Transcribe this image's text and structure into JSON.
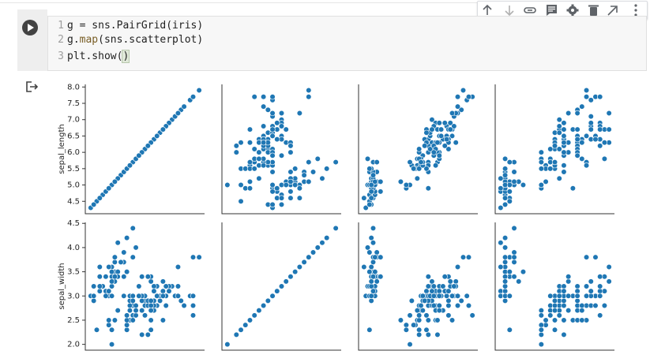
{
  "code": {
    "lines": [
      {
        "number": 1,
        "code": [
          "g = sns.PairGrid(iris)"
        ]
      },
      {
        "number": 2,
        "code": [
          "g.",
          "map",
          "(sns.scatterplot)"
        ]
      },
      {
        "number": 3,
        "code": [
          "plt.show(",
          ")"
        ]
      }
    ]
  },
  "chart_data": {
    "type": "pairgrid",
    "color": "#1f77b4",
    "columns": [
      {
        "label": "sepal_length",
        "lim": [
          4.12,
          8.08
        ],
        "ticks": [
          4.5,
          {
            "value": 5,
            "label": "5.0"
          },
          5.5,
          {
            "value": 6,
            "label": "6.0"
          },
          6.5,
          {
            "value": 7,
            "label": "7.0"
          },
          7.5,
          {
            "value": 8,
            "label": "8.0"
          }
        ],
        "values": [
          5.1,
          4.9,
          4.7,
          4.6,
          5.0,
          5.4,
          4.6,
          5.0,
          4.4,
          4.9,
          5.4,
          4.8,
          4.8,
          4.3,
          5.8,
          5.7,
          5.4,
          5.1,
          5.7,
          5.1,
          5.4,
          5.1,
          4.6,
          5.1,
          4.8,
          5.0,
          5.0,
          5.2,
          5.2,
          4.7,
          4.8,
          5.4,
          5.2,
          5.5,
          4.9,
          5.0,
          5.5,
          4.9,
          4.4,
          5.1,
          5.0,
          4.5,
          4.4,
          5.0,
          5.1,
          4.8,
          5.1,
          4.6,
          5.3,
          5.0,
          7.0,
          6.4,
          6.9,
          5.5,
          6.5,
          5.7,
          6.3,
          4.9,
          6.6,
          5.2,
          5.0,
          5.9,
          6.0,
          6.1,
          5.6,
          6.7,
          5.6,
          5.8,
          6.2,
          5.6,
          5.9,
          6.1,
          6.3,
          6.1,
          6.4,
          6.6,
          6.8,
          6.7,
          6.0,
          5.7,
          5.5,
          5.5,
          5.8,
          6.0,
          5.4,
          6.0,
          6.7,
          6.3,
          5.6,
          5.5,
          5.5,
          6.1,
          5.8,
          5.0,
          5.6,
          5.7,
          5.7,
          6.2,
          5.1,
          5.7,
          6.3,
          5.8,
          7.1,
          6.3,
          6.5,
          7.6,
          4.9,
          7.3,
          6.7,
          7.2,
          6.5,
          6.4,
          6.8,
          5.7,
          5.8,
          6.4,
          6.5,
          7.7,
          7.7,
          6.0,
          6.9,
          5.6,
          7.7,
          6.3,
          6.7,
          7.2,
          6.2,
          6.1,
          6.4,
          7.2,
          7.4,
          7.9,
          6.4,
          6.3,
          6.1,
          7.7,
          6.3,
          6.4,
          6.0,
          6.9,
          6.7,
          6.9,
          5.8,
          6.8,
          6.7,
          6.7,
          6.3,
          6.5,
          6.2,
          5.9
        ]
      },
      {
        "label": "sepal_width",
        "lim": [
          1.88,
          4.52
        ],
        "ticks": [
          {
            "value": 2,
            "label": "2.0"
          },
          2.5,
          {
            "value": 3,
            "label": "3.0"
          },
          3.5,
          {
            "value": 4,
            "label": "4.0"
          },
          4.5
        ],
        "values": [
          3.5,
          3.0,
          3.2,
          3.1,
          3.6,
          3.9,
          3.4,
          3.4,
          2.9,
          3.1,
          3.7,
          3.4,
          3.0,
          3.0,
          4.0,
          4.4,
          3.9,
          3.5,
          3.8,
          3.8,
          3.4,
          3.7,
          3.6,
          3.3,
          3.4,
          3.0,
          3.4,
          3.5,
          3.4,
          3.2,
          3.1,
          3.4,
          4.1,
          4.2,
          3.1,
          3.2,
          3.5,
          3.6,
          3.0,
          3.4,
          3.5,
          2.3,
          3.2,
          3.5,
          3.8,
          3.0,
          3.8,
          3.2,
          3.7,
          3.3,
          3.2,
          3.2,
          3.1,
          2.3,
          2.8,
          2.8,
          3.3,
          2.4,
          2.9,
          2.7,
          2.0,
          3.0,
          2.2,
          2.9,
          2.9,
          3.1,
          3.0,
          2.7,
          2.2,
          2.5,
          3.2,
          2.8,
          2.5,
          2.8,
          2.9,
          3.0,
          2.8,
          3.0,
          2.9,
          2.6,
          2.4,
          2.4,
          2.7,
          2.7,
          3.0,
          3.4,
          3.1,
          2.3,
          3.0,
          2.5,
          2.6,
          3.0,
          2.6,
          2.3,
          2.7,
          3.0,
          2.9,
          2.9,
          2.5,
          2.8,
          3.3,
          2.7,
          3.0,
          2.9,
          3.0,
          3.0,
          2.5,
          2.9,
          2.5,
          3.6,
          3.2,
          2.7,
          3.0,
          2.5,
          2.8,
          3.2,
          3.0,
          3.8,
          2.6,
          2.2,
          3.2,
          2.8,
          2.8,
          2.7,
          3.3,
          3.2,
          2.8,
          3.0,
          2.8,
          3.0,
          2.8,
          3.8,
          2.8,
          2.8,
          2.6,
          3.0,
          3.4,
          3.1,
          3.0,
          3.1,
          3.1,
          3.1,
          2.7,
          3.2,
          3.3,
          3.0,
          2.5,
          3.0,
          3.4,
          3.0
        ]
      },
      {
        "lim": [
          0.705,
          7.195
        ],
        "values": [
          1.4,
          1.4,
          1.3,
          1.5,
          1.4,
          1.7,
          1.4,
          1.5,
          1.4,
          1.5,
          1.5,
          1.6,
          1.4,
          1.1,
          1.2,
          1.5,
          1.3,
          1.4,
          1.7,
          1.5,
          1.7,
          1.5,
          1.0,
          1.7,
          1.9,
          1.6,
          1.6,
          1.5,
          1.4,
          1.6,
          1.6,
          1.5,
          1.5,
          1.4,
          1.5,
          1.2,
          1.3,
          1.4,
          1.3,
          1.5,
          1.3,
          1.3,
          1.3,
          1.6,
          1.9,
          1.4,
          1.6,
          1.4,
          1.5,
          1.4,
          4.7,
          4.5,
          4.9,
          4.0,
          4.6,
          4.5,
          4.7,
          3.3,
          4.6,
          3.9,
          3.5,
          4.2,
          4.0,
          4.7,
          3.6,
          4.4,
          4.5,
          4.1,
          4.5,
          3.9,
          4.8,
          4.0,
          4.9,
          4.7,
          4.3,
          4.4,
          4.8,
          5.0,
          4.5,
          3.5,
          3.8,
          3.7,
          3.9,
          5.1,
          4.5,
          4.5,
          4.7,
          4.4,
          4.1,
          4.0,
          4.4,
          4.6,
          4.0,
          3.3,
          4.2,
          4.2,
          4.2,
          4.3,
          3.0,
          4.1,
          6.0,
          5.1,
          5.9,
          5.6,
          5.8,
          6.6,
          4.5,
          6.3,
          5.8,
          6.1,
          5.1,
          5.3,
          5.5,
          5.0,
          5.1,
          5.3,
          5.5,
          6.7,
          6.9,
          5.0,
          5.7,
          4.9,
          6.7,
          4.9,
          5.7,
          6.0,
          4.8,
          4.9,
          5.6,
          5.8,
          6.1,
          6.4,
          5.6,
          5.1,
          5.6,
          6.1,
          5.6,
          5.5,
          4.8,
          5.4,
          5.6,
          5.1,
          5.1,
          5.9,
          5.7,
          5.2,
          5.0,
          5.2,
          5.4,
          5.1
        ]
      },
      {
        "lim": [
          -0.02,
          2.62
        ],
        "values": [
          0.2,
          0.2,
          0.2,
          0.2,
          0.2,
          0.4,
          0.3,
          0.2,
          0.2,
          0.1,
          0.2,
          0.2,
          0.1,
          0.1,
          0.2,
          0.4,
          0.4,
          0.3,
          0.3,
          0.3,
          0.2,
          0.4,
          0.2,
          0.5,
          0.2,
          0.2,
          0.4,
          0.2,
          0.2,
          0.2,
          0.2,
          0.4,
          0.1,
          0.2,
          0.2,
          0.2,
          0.2,
          0.1,
          0.2,
          0.2,
          0.3,
          0.3,
          0.2,
          0.6,
          0.4,
          0.3,
          0.2,
          0.2,
          0.2,
          0.2,
          1.4,
          1.5,
          1.5,
          1.3,
          1.5,
          1.3,
          1.6,
          1.0,
          1.3,
          1.4,
          1.0,
          1.5,
          1.0,
          1.4,
          1.3,
          1.4,
          1.5,
          1.0,
          1.5,
          1.1,
          1.8,
          1.3,
          1.5,
          1.2,
          1.3,
          1.4,
          1.4,
          1.7,
          1.5,
          1.0,
          1.1,
          1.0,
          1.2,
          1.6,
          1.5,
          1.6,
          1.5,
          1.3,
          1.3,
          1.3,
          1.2,
          1.4,
          1.2,
          1.0,
          1.3,
          1.2,
          1.3,
          1.3,
          1.1,
          1.3,
          2.5,
          1.9,
          2.1,
          1.8,
          2.2,
          2.1,
          1.7,
          1.8,
          1.8,
          2.5,
          2.0,
          1.9,
          2.1,
          2.0,
          2.4,
          2.3,
          1.8,
          2.2,
          2.3,
          1.5,
          2.3,
          2.0,
          2.0,
          1.8,
          2.1,
          1.8,
          1.8,
          1.8,
          2.1,
          1.6,
          1.9,
          2.0,
          2.2,
          1.5,
          1.4,
          2.3,
          2.4,
          1.8,
          1.8,
          2.1,
          2.4,
          2.3,
          1.9,
          2.3,
          2.5,
          2.3,
          1.9,
          2.0,
          2.3,
          1.8
        ]
      }
    ]
  }
}
